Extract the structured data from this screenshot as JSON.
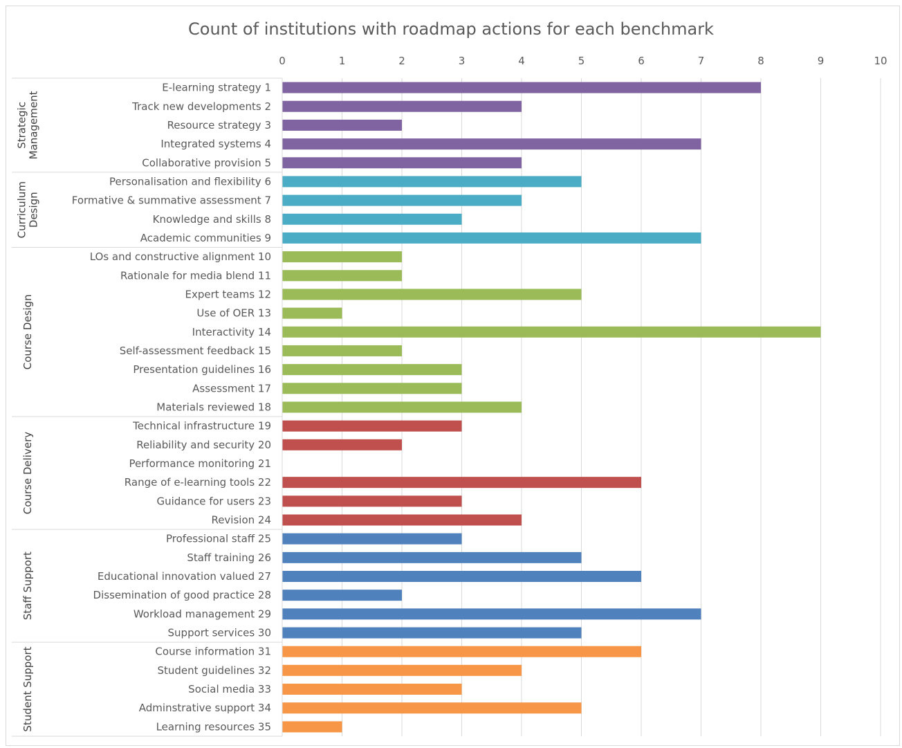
{
  "chart_data": {
    "type": "bar",
    "orientation": "horizontal",
    "title": "Count of institutions with roadmap actions for each benchmark",
    "xlim": [
      0,
      10
    ],
    "xticks": [
      0,
      1,
      2,
      3,
      4,
      5,
      6,
      7,
      8,
      9,
      10
    ],
    "grid": true,
    "legend": "none",
    "groups": [
      {
        "name": "Strategic Management",
        "label_lines": [
          "Strategic",
          "Management"
        ],
        "color": "#8064a2",
        "items": [
          {
            "label": "E-learning strategy 1",
            "value": 8
          },
          {
            "label": "Track new developments 2",
            "value": 4
          },
          {
            "label": "Resource strategy 3",
            "value": 2
          },
          {
            "label": "Integrated systems 4",
            "value": 7
          },
          {
            "label": "Collaborative provision 5",
            "value": 4
          }
        ]
      },
      {
        "name": "Curriculum Design",
        "label_lines": [
          "Curriculum",
          "Design"
        ],
        "color": "#4bacc6",
        "items": [
          {
            "label": "Personalisation and flexibility 6",
            "value": 5
          },
          {
            "label": "Formative & summative assessment 7",
            "value": 4
          },
          {
            "label": "Knowledge and skills 8",
            "value": 3
          },
          {
            "label": "Academic communities 9",
            "value": 7
          }
        ]
      },
      {
        "name": "Course Design",
        "label_lines": [
          "Course Design"
        ],
        "color": "#9bbb59",
        "items": [
          {
            "label": "LOs and constructive alignment 10",
            "value": 2
          },
          {
            "label": "Rationale for media blend 11",
            "value": 2
          },
          {
            "label": "Expert teams 12",
            "value": 5
          },
          {
            "label": "Use of OER 13",
            "value": 1
          },
          {
            "label": "Interactivity 14",
            "value": 9
          },
          {
            "label": "Self-assessment feedback 15",
            "value": 2
          },
          {
            "label": "Presentation guidelines 16",
            "value": 3
          },
          {
            "label": "Assessment 17",
            "value": 3
          },
          {
            "label": "Materials reviewed 18",
            "value": 4
          }
        ]
      },
      {
        "name": "Course Delivery",
        "label_lines": [
          "Course Delivery"
        ],
        "color": "#c0504d",
        "items": [
          {
            "label": "Technical infrastructure 19",
            "value": 3
          },
          {
            "label": "Reliability and security 20",
            "value": 2
          },
          {
            "label": "Performance monitoring 21",
            "value": 0
          },
          {
            "label": "Range of e-learning tools 22",
            "value": 6
          },
          {
            "label": "Guidance for users 23",
            "value": 3
          },
          {
            "label": "Revision 24",
            "value": 4
          }
        ]
      },
      {
        "name": "Staff Support",
        "label_lines": [
          "Staff Support"
        ],
        "color": "#4f81bd",
        "items": [
          {
            "label": "Professional staff 25",
            "value": 3
          },
          {
            "label": "Staff training 26",
            "value": 5
          },
          {
            "label": "Educational innovation valued 27",
            "value": 6
          },
          {
            "label": "Dissemination of good practice 28",
            "value": 2
          },
          {
            "label": "Workload management 29",
            "value": 7
          },
          {
            "label": "Support services 30",
            "value": 5
          }
        ]
      },
      {
        "name": "Student Support",
        "label_lines": [
          "Student Support"
        ],
        "color": "#f79646",
        "items": [
          {
            "label": "Course information 31",
            "value": 6
          },
          {
            "label": "Student guidelines 32",
            "value": 4
          },
          {
            "label": "Social media 33",
            "value": 3
          },
          {
            "label": "Adminstrative support 34",
            "value": 5
          },
          {
            "label": "Learning resources 35",
            "value": 1
          }
        ]
      }
    ]
  }
}
